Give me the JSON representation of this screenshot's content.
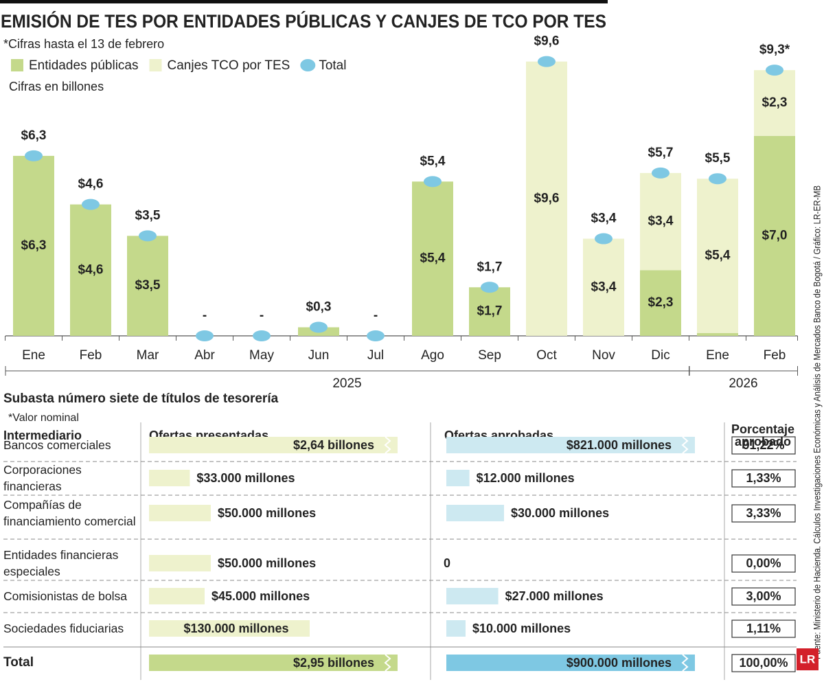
{
  "chart_data": {
    "type": "bar",
    "title": "EMISIÓN DE TES POR ENTIDADES PÚBLICAS Y CANJES DE TCO POR TES",
    "note": "*Cifras hasta el 13 de febrero",
    "unit": "Cifras en billones",
    "categories": [
      "Ene",
      "Feb",
      "Mar",
      "Abr",
      "May",
      "Jun",
      "Jul",
      "Ago",
      "Sep",
      "Oct",
      "Nov",
      "Dic",
      "Ene",
      "Feb"
    ],
    "years": [
      "2025",
      "2025",
      "2025",
      "2025",
      "2025",
      "2025",
      "2025",
      "2025",
      "2025",
      "2025",
      "2025",
      "2025",
      "2026",
      "2026"
    ],
    "ylim": [
      0,
      10
    ],
    "series": [
      {
        "name": "Entidades públicas",
        "color": "#c4d98b",
        "values": [
          6.3,
          4.6,
          3.5,
          0,
          0,
          0.3,
          0,
          5.4,
          1.7,
          0,
          0,
          2.3,
          0.1,
          7.0
        ],
        "value_labels": [
          "$6,3",
          "$4,6",
          "$3,5",
          null,
          null,
          null,
          null,
          "$5,4",
          "$1,7",
          null,
          null,
          "$2,3",
          null,
          "$7,0"
        ]
      },
      {
        "name": "Canjes TCO por TES",
        "color": "#eef2cd",
        "values": [
          0,
          0,
          0,
          0,
          0,
          0,
          0,
          0,
          0,
          9.6,
          3.4,
          3.4,
          5.4,
          2.3
        ],
        "value_labels": [
          null,
          null,
          null,
          null,
          null,
          null,
          null,
          null,
          null,
          "$9,6",
          "$3,4",
          "$3,4",
          "$5,4",
          "$2,3"
        ]
      },
      {
        "name": "Total",
        "type": "marker",
        "color": "#7ec8e3",
        "values": [
          6.3,
          4.6,
          3.5,
          0,
          0,
          0.3,
          0,
          5.4,
          1.7,
          9.6,
          3.4,
          5.7,
          5.5,
          9.3
        ],
        "value_labels": [
          "$6,3",
          "$4,6",
          "$3,5",
          "-",
          "-",
          "$0,3",
          "-",
          "$5,4",
          "$1,7",
          "$9,6",
          "$3,4",
          "$5,7",
          "$5,5",
          "$9,3*"
        ]
      }
    ]
  },
  "table": {
    "title": "Subasta número siete de títulos de tesorería",
    "note": "*Valor nominal",
    "columns": [
      "Intermediario",
      "Ofertas presentadas",
      "Ofertas aprobadas",
      "Porcentaje aprobado"
    ],
    "rows": [
      {
        "name": "Bancos comerciales",
        "offered": {
          "value": 2640000,
          "label": "$2,64 billones"
        },
        "approved": {
          "value": 821000,
          "label": "$821.000 millones"
        },
        "percent": "91,22%"
      },
      {
        "name": "Corporaciones financieras",
        "offered": {
          "value": 33000,
          "label": "$33.000 millones"
        },
        "approved": {
          "value": 12000,
          "label": "$12.000 millones"
        },
        "percent": "1,33%"
      },
      {
        "name": "Compañías de financiamiento comercial",
        "offered": {
          "value": 50000,
          "label": "$50.000 millones"
        },
        "approved": {
          "value": 30000,
          "label": "$30.000 millones"
        },
        "percent": "3,33%"
      },
      {
        "name": "Entidades financieras especiales",
        "offered": {
          "value": 50000,
          "label": "$50.000 millones"
        },
        "approved": {
          "value": 0,
          "label": "0"
        },
        "percent": "0,00%"
      },
      {
        "name": "Comisionistas de bolsa",
        "offered": {
          "value": 45000,
          "label": "$45.000 millones"
        },
        "approved": {
          "value": 27000,
          "label": "$27.000 millones"
        },
        "percent": "3,00%"
      },
      {
        "name": "Sociedades fiduciarias",
        "offered": {
          "value": 130000,
          "label": "$130.000 millones"
        },
        "approved": {
          "value": 10000,
          "label": "$10.000 millones"
        },
        "percent": "1,11%"
      }
    ],
    "total": {
      "name": "Total",
      "offered": {
        "value": 2950000,
        "label": "$2,95 billones"
      },
      "approved": {
        "value": 900000,
        "label": "$900.000 millones"
      },
      "percent": "100,00%"
    }
  },
  "source": "Fuente: Ministerio de Hacienda. Cálculos Investigaciones Económicas y Análisis de Mercados Banco de Bogotá / Gráfico: LR-ER-MB",
  "logo": "LR"
}
